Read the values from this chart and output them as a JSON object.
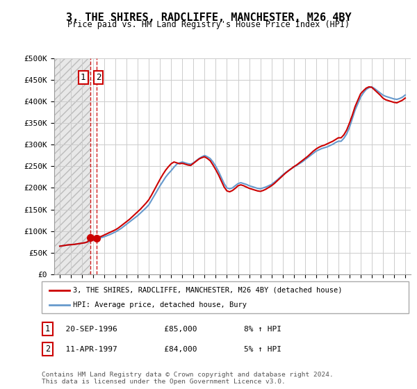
{
  "title": "3, THE SHIRES, RADCLIFFE, MANCHESTER, M26 4BY",
  "subtitle": "Price paid vs. HM Land Registry's House Price Index (HPI)",
  "ylim": [
    0,
    500000
  ],
  "yticks": [
    0,
    50000,
    100000,
    150000,
    200000,
    250000,
    300000,
    350000,
    400000,
    450000,
    500000
  ],
  "ytick_labels": [
    "£0",
    "£50K",
    "£100K",
    "£150K",
    "£200K",
    "£250K",
    "£300K",
    "£350K",
    "£400K",
    "£450K",
    "£500K"
  ],
  "xlim_start": 1993.5,
  "xlim_end": 2025.5,
  "hpi_color": "#6699cc",
  "price_color": "#cc0000",
  "dot_color": "#cc0000",
  "annotation_box_color": "#cc0000",
  "grid_color": "#cccccc",
  "legend_label_price": "3, THE SHIRES, RADCLIFFE, MANCHESTER, M26 4BY (detached house)",
  "legend_label_hpi": "HPI: Average price, detached house, Bury",
  "sale1_label": "1",
  "sale1_date": "20-SEP-1996",
  "sale1_price": "£85,000",
  "sale1_hpi": "8% ↑ HPI",
  "sale1_year": 1996.72,
  "sale2_label": "2",
  "sale2_date": "11-APR-1997",
  "sale2_price": "£84,000",
  "sale2_hpi": "5% ↑ HPI",
  "sale2_year": 1997.28,
  "sale1_value": 85000,
  "sale2_value": 84000,
  "footnote1": "Contains HM Land Registry data © Crown copyright and database right 2024.",
  "footnote2": "This data is licensed under the Open Government Licence v3.0.",
  "hpi_years": [
    1994.0,
    1994.25,
    1994.5,
    1994.75,
    1995.0,
    1995.25,
    1995.5,
    1995.75,
    1996.0,
    1996.25,
    1996.5,
    1996.75,
    1997.0,
    1997.25,
    1997.5,
    1997.75,
    1998.0,
    1998.25,
    1998.5,
    1998.75,
    1999.0,
    1999.25,
    1999.5,
    1999.75,
    2000.0,
    2000.25,
    2000.5,
    2000.75,
    2001.0,
    2001.25,
    2001.5,
    2001.75,
    2002.0,
    2002.25,
    2002.5,
    2002.75,
    2003.0,
    2003.25,
    2003.5,
    2003.75,
    2004.0,
    2004.25,
    2004.5,
    2004.75,
    2005.0,
    2005.25,
    2005.5,
    2005.75,
    2006.0,
    2006.25,
    2006.5,
    2006.75,
    2007.0,
    2007.25,
    2007.5,
    2007.75,
    2008.0,
    2008.25,
    2008.5,
    2008.75,
    2009.0,
    2009.25,
    2009.5,
    2009.75,
    2010.0,
    2010.25,
    2010.5,
    2010.75,
    2011.0,
    2011.25,
    2011.5,
    2011.75,
    2012.0,
    2012.25,
    2012.5,
    2012.75,
    2013.0,
    2013.25,
    2013.5,
    2013.75,
    2014.0,
    2014.25,
    2014.5,
    2014.75,
    2015.0,
    2015.25,
    2015.5,
    2015.75,
    2016.0,
    2016.25,
    2016.5,
    2016.75,
    2017.0,
    2017.25,
    2017.5,
    2017.75,
    2018.0,
    2018.25,
    2018.5,
    2018.75,
    2019.0,
    2019.25,
    2019.5,
    2019.75,
    2020.0,
    2020.25,
    2020.5,
    2020.75,
    2021.0,
    2021.25,
    2021.5,
    2021.75,
    2022.0,
    2022.25,
    2022.5,
    2022.75,
    2023.0,
    2023.25,
    2023.5,
    2023.75,
    2024.0,
    2024.25,
    2024.5,
    2024.75,
    2025.0
  ],
  "hpi_values": [
    65000,
    66000,
    67000,
    68000,
    68500,
    69000,
    70000,
    71000,
    72000,
    73000,
    75000,
    77000,
    79000,
    81000,
    83000,
    85000,
    87000,
    89500,
    92000,
    95000,
    98000,
    102000,
    106000,
    111000,
    116000,
    121000,
    126000,
    131000,
    136000,
    142000,
    148000,
    154000,
    161000,
    172000,
    183000,
    194000,
    205000,
    215000,
    225000,
    233000,
    240000,
    248000,
    255000,
    258000,
    260000,
    258000,
    256000,
    255000,
    258000,
    263000,
    268000,
    272000,
    275000,
    272000,
    268000,
    260000,
    250000,
    238000,
    224000,
    210000,
    200000,
    198000,
    200000,
    205000,
    210000,
    212000,
    210000,
    208000,
    205000,
    203000,
    201000,
    199000,
    198000,
    200000,
    202000,
    205000,
    208000,
    213000,
    218000,
    224000,
    230000,
    235000,
    240000,
    244000,
    248000,
    252000,
    256000,
    260000,
    265000,
    270000,
    275000,
    280000,
    285000,
    288000,
    291000,
    293000,
    295000,
    298000,
    301000,
    305000,
    308000,
    308000,
    315000,
    325000,
    340000,
    360000,
    380000,
    395000,
    410000,
    420000,
    428000,
    432000,
    434000,
    430000,
    425000,
    420000,
    415000,
    412000,
    410000,
    408000,
    406000,
    405000,
    407000,
    410000,
    415000
  ],
  "price_years": [
    1994.0,
    1994.25,
    1994.5,
    1994.75,
    1995.0,
    1995.25,
    1995.5,
    1995.75,
    1996.0,
    1996.25,
    1996.5,
    1996.75,
    1997.0,
    1997.25,
    1997.5,
    1997.75,
    1998.0,
    1998.25,
    1998.5,
    1998.75,
    1999.0,
    1999.25,
    1999.5,
    1999.75,
    2000.0,
    2000.25,
    2000.5,
    2000.75,
    2001.0,
    2001.25,
    2001.5,
    2001.75,
    2002.0,
    2002.25,
    2002.5,
    2002.75,
    2003.0,
    2003.25,
    2003.5,
    2003.75,
    2004.0,
    2004.25,
    2004.5,
    2004.75,
    2005.0,
    2005.25,
    2005.5,
    2005.75,
    2006.0,
    2006.25,
    2006.5,
    2006.75,
    2007.0,
    2007.25,
    2007.5,
    2007.75,
    2008.0,
    2008.25,
    2008.5,
    2008.75,
    2009.0,
    2009.25,
    2009.5,
    2009.75,
    2010.0,
    2010.25,
    2010.5,
    2010.75,
    2011.0,
    2011.25,
    2011.5,
    2011.75,
    2012.0,
    2012.25,
    2012.5,
    2012.75,
    2013.0,
    2013.25,
    2013.5,
    2013.75,
    2014.0,
    2014.25,
    2014.5,
    2014.75,
    2015.0,
    2015.25,
    2015.5,
    2015.75,
    2016.0,
    2016.25,
    2016.5,
    2016.75,
    2017.0,
    2017.25,
    2017.5,
    2017.75,
    2018.0,
    2018.25,
    2018.5,
    2018.75,
    2019.0,
    2019.25,
    2019.5,
    2019.75,
    2020.0,
    2020.25,
    2020.5,
    2020.75,
    2021.0,
    2021.25,
    2021.5,
    2021.75,
    2022.0,
    2022.25,
    2022.5,
    2022.75,
    2023.0,
    2023.25,
    2023.5,
    2023.75,
    2024.0,
    2024.25,
    2024.5,
    2024.75,
    2025.0
  ],
  "price_values": [
    65000,
    66000,
    67000,
    68000,
    68500,
    69000,
    70000,
    71000,
    72000,
    73000,
    75000,
    85000,
    85000,
    84000,
    86000,
    88000,
    91000,
    94000,
    97000,
    100000,
    103000,
    107000,
    112000,
    117000,
    122000,
    127000,
    133000,
    139000,
    145000,
    151000,
    158000,
    165000,
    173000,
    184000,
    196000,
    208000,
    220000,
    231000,
    241000,
    249000,
    256000,
    260000,
    258000,
    256000,
    257000,
    255000,
    253000,
    252000,
    257000,
    262000,
    267000,
    270000,
    272000,
    268000,
    263000,
    253000,
    242000,
    230000,
    216000,
    202000,
    193000,
    191000,
    194000,
    199000,
    205000,
    207000,
    205000,
    202000,
    199000,
    197000,
    195000,
    193000,
    192000,
    194000,
    197000,
    201000,
    205000,
    210000,
    216000,
    222000,
    228000,
    234000,
    239000,
    244000,
    249000,
    253000,
    258000,
    263000,
    268000,
    273000,
    279000,
    285000,
    290000,
    294000,
    297000,
    299000,
    302000,
    305000,
    308000,
    312000,
    316000,
    316000,
    323000,
    334000,
    350000,
    368000,
    388000,
    403000,
    418000,
    425000,
    431000,
    434000,
    433000,
    427000,
    421000,
    415000,
    408000,
    404000,
    402000,
    400000,
    398000,
    397000,
    400000,
    403000,
    408000
  ]
}
